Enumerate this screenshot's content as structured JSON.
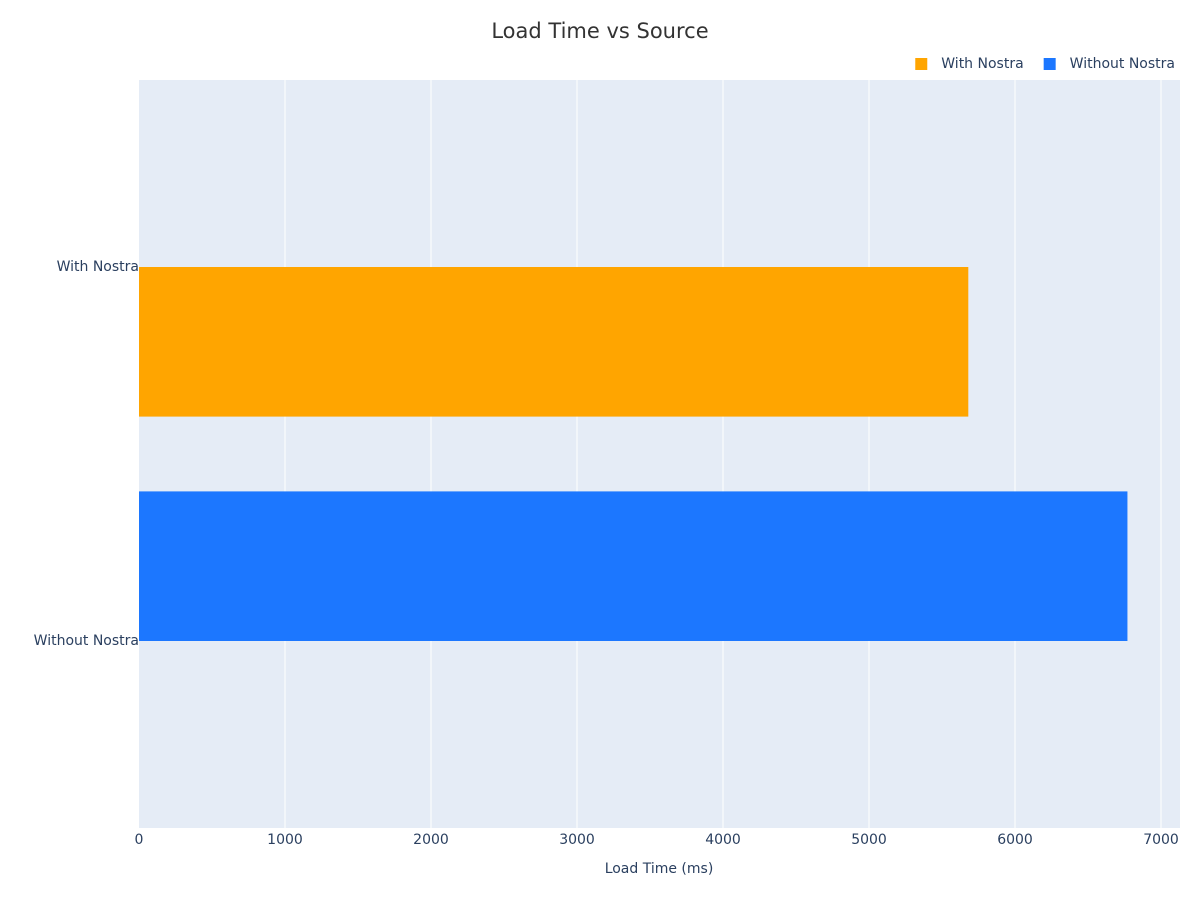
{
  "chart_data": {
    "type": "hbar",
    "title": "Load Time vs Source",
    "x_label": "Load Time (ms)",
    "categories": [
      "With Nostra",
      "Without Nostra"
    ],
    "series": [
      {
        "name": "With Nostra",
        "color": "#ffa500",
        "values": [
          5680,
          null
        ]
      },
      {
        "name": "Without Nostra",
        "color": "#1c77ff",
        "values": [
          null,
          6770
        ]
      }
    ],
    "xlim": [
      0,
      7130
    ],
    "xticks": [
      0,
      1000,
      2000,
      3000,
      4000,
      5000,
      6000,
      7000
    ],
    "grid": true,
    "legend": "top-right"
  }
}
